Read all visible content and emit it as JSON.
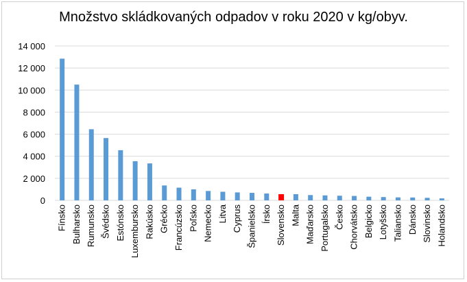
{
  "chart_data": {
    "type": "bar",
    "title": "Množstvo skládkovaných odpadov v roku 2020 v kg/obyv.",
    "xlabel": "",
    "ylabel": "",
    "ylim": [
      0,
      14000
    ],
    "yticks": [
      0,
      2000,
      4000,
      6000,
      8000,
      10000,
      12000,
      14000
    ],
    "ytick_labels": [
      "0",
      "2 000",
      "4 000",
      "6 000",
      "8 000",
      "10 000",
      "12 000",
      "14 000"
    ],
    "grid": true,
    "legend": "none",
    "categories": [
      "Fínsko",
      "Bulharsko",
      "Rumunsko",
      "Švédsko",
      "Estónsko",
      "Luxembursko",
      "Rakúsko",
      "Grécko",
      "Francúzsko",
      "Poľsko",
      "Nemecko",
      "Litva",
      "Cyprus",
      "Španielsko",
      "Írsko",
      "Slovensko",
      "Malta",
      "Maďarsko",
      "Portugalsko",
      "Česko",
      "Chorvátsko",
      "Belgicko",
      "Lotyšsko",
      "Taliansko",
      "Dánsko",
      "Slovinsko",
      "Holandsko"
    ],
    "values": [
      12850,
      10500,
      6450,
      5650,
      4550,
      3550,
      3350,
      1350,
      1150,
      1000,
      850,
      780,
      720,
      680,
      620,
      560,
      560,
      480,
      450,
      420,
      400,
      330,
      300,
      270,
      260,
      230,
      180
    ],
    "colors": {
      "default": "#5b9bd5",
      "highlight": "#ff0000",
      "grid": "#d9d9d9"
    },
    "highlight_category": "Slovensko"
  }
}
